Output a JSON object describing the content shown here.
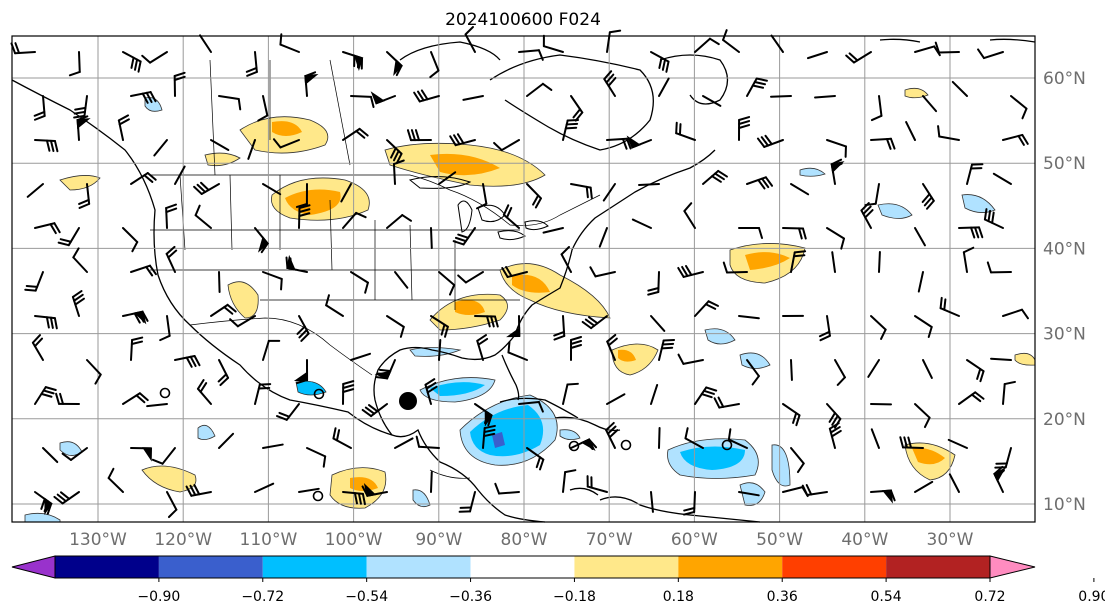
{
  "map": {
    "title": "2024100600 F024",
    "lon_labels": [
      "130°W",
      "120°W",
      "110°W",
      "100°W",
      "90°W",
      "80°W",
      "70°W",
      "60°W",
      "50°W",
      "40°W",
      "30°W"
    ],
    "lat_labels": [
      "60°N",
      "50°N",
      "40°N",
      "30°N",
      "20°N",
      "10°N"
    ],
    "lon_values": [
      -130,
      -120,
      -110,
      -100,
      -90,
      -80,
      -70,
      -60,
      -50,
      -40,
      -30
    ],
    "lat_values": [
      60,
      50,
      40,
      30,
      20,
      10
    ],
    "extent": {
      "lon_min": -140,
      "lon_max": -20,
      "lat_min": 8,
      "lat_max": 65
    },
    "gridlines": true
  },
  "colorbar": {
    "orientation": "horizontal",
    "extend": "both",
    "tick_labels": [
      "−0.90",
      "−0.72",
      "−0.54",
      "−0.36",
      "−0.18",
      "0.18",
      "0.36",
      "0.54",
      "0.72",
      "0.90"
    ],
    "colors": [
      "#9932cc",
      "#00008b",
      "#3a5fcd",
      "#00bfff",
      "#b0e2ff",
      "#ffffff",
      "#ffe88a",
      "#ffa500",
      "#ff3f00",
      "#b22222",
      "#ff8cc0"
    ]
  },
  "icons": {
    "storm_marker": "tropical-cyclone-dot-icon",
    "wind_barbs": "wind-barb-icon"
  }
}
